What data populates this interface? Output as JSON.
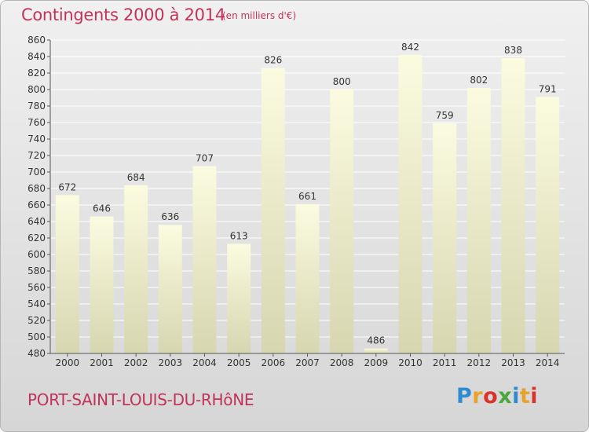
{
  "header": {
    "title": "Contingents 2000 à 2014",
    "subtitle": "(en milliers d'€)"
  },
  "footer": {
    "place": "PORT-SAINT-LOUIS-DU-RHôNE",
    "logo_text": "Proxiti",
    "logo_colors": [
      "#2e8bd0",
      "#e8a12a",
      "#d9342b",
      "#4aa83f",
      "#2e8bd0",
      "#e8a12a",
      "#d9342b"
    ]
  },
  "colors": {
    "accent": "#c0345a",
    "bar_top": "#fbfbe0",
    "bar_bottom": "#d6d6b0"
  },
  "chart_data": {
    "type": "bar",
    "title": "Contingents 2000 à 2014",
    "subtitle": "(en milliers d'€)",
    "xlabel": "",
    "ylabel": "",
    "categories": [
      "2000",
      "2001",
      "2002",
      "2003",
      "2004",
      "2005",
      "2006",
      "2007",
      "2008",
      "2009",
      "2010",
      "2011",
      "2012",
      "2013",
      "2014"
    ],
    "values": [
      672,
      646,
      684,
      636,
      707,
      613,
      826,
      661,
      800,
      486,
      842,
      759,
      802,
      838,
      791
    ],
    "ylim": [
      480,
      860
    ],
    "yticks": [
      480,
      500,
      520,
      540,
      560,
      580,
      600,
      620,
      640,
      660,
      680,
      700,
      720,
      740,
      760,
      780,
      800,
      820,
      840,
      860
    ],
    "grid": true
  }
}
